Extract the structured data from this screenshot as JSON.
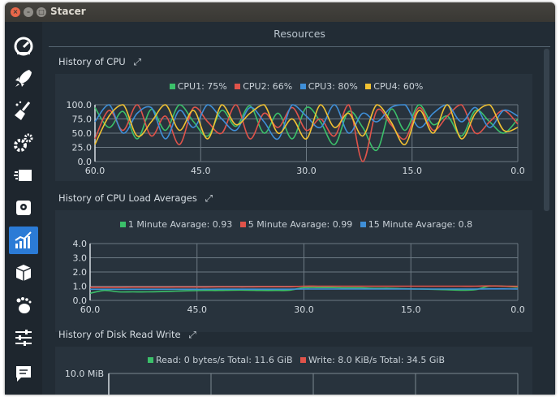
{
  "window": {
    "title": "Stacer"
  },
  "sidebar": {
    "items": [
      {
        "name": "dashboard-icon"
      },
      {
        "name": "startup-apps-icon"
      },
      {
        "name": "system-cleaner-icon"
      },
      {
        "name": "services-icon"
      },
      {
        "name": "processes-icon"
      },
      {
        "name": "uninstaller-icon"
      },
      {
        "name": "resources-icon",
        "active": true
      },
      {
        "name": "packages-icon"
      },
      {
        "name": "gnome-settings-icon"
      },
      {
        "name": "settings-icon"
      },
      {
        "name": "feedback-icon"
      }
    ]
  },
  "page": {
    "title": "Resources"
  },
  "colors": {
    "green": "#3bc06a",
    "red": "#e0534a",
    "blue": "#3f8fd8",
    "yellow": "#f1c232"
  },
  "sections": {
    "cpu": {
      "title": "History of CPU"
    },
    "load": {
      "title": "History of CPU Load Averages"
    },
    "disk": {
      "title": "History of Disk Read Write"
    }
  },
  "chart_data": [
    {
      "type": "line",
      "title": "History of CPU",
      "x_ticks": [
        "60.0",
        "45.0",
        "30.0",
        "15.0",
        "0.0"
      ],
      "y_ticks": [
        "0.0",
        "25.0",
        "50.0",
        "75.0",
        "100.0"
      ],
      "xlim": [
        60,
        0
      ],
      "ylim": [
        0,
        100
      ],
      "x": [
        60,
        58,
        56,
        54,
        52,
        50,
        48,
        46,
        44,
        42,
        40,
        38,
        36,
        34,
        32,
        30,
        28,
        26,
        24,
        22,
        20,
        18,
        16,
        14,
        12,
        10,
        8,
        6,
        4,
        2,
        0
      ],
      "series": [
        {
          "name": "CPU1: 75%",
          "color": "#3bc06a",
          "values": [
            95,
            60,
            88,
            40,
            92,
            55,
            100,
            70,
            45,
            90,
            62,
            98,
            50,
            85,
            40,
            95,
            70,
            30,
            88,
            60,
            20,
            92,
            55,
            100,
            65,
            80,
            45,
            90,
            70,
            50,
            75
          ]
        },
        {
          "name": "CPU2: 66%",
          "color": "#e0534a",
          "values": [
            40,
            90,
            55,
            100,
            45,
            80,
            30,
            95,
            70,
            50,
            100,
            40,
            85,
            60,
            95,
            55,
            75,
            45,
            100,
            0,
            90,
            65,
            40,
            95,
            55,
            80,
            100,
            50,
            70,
            90,
            66
          ]
        },
        {
          "name": "CPU3: 80%",
          "color": "#3f8fd8",
          "values": [
            70,
            100,
            50,
            85,
            95,
            40,
            90,
            60,
            100,
            75,
            55,
            95,
            70,
            40,
            100,
            80,
            60,
            100,
            50,
            85,
            70,
            95,
            100,
            60,
            85,
            100,
            70,
            95,
            60,
            90,
            80
          ]
        },
        {
          "name": "CPU4: 60%",
          "color": "#f1c232",
          "values": [
            30,
            80,
            100,
            45,
            70,
            100,
            55,
            90,
            40,
            100,
            65,
            85,
            100,
            50,
            75,
            40,
            100,
            60,
            85,
            45,
            100,
            70,
            30,
            90,
            50,
            100,
            40,
            85,
            100,
            55,
            60
          ]
        }
      ]
    },
    {
      "type": "line",
      "title": "History of CPU Load Averages",
      "x_ticks": [
        "60.0",
        "45.0",
        "30.0",
        "15.0",
        "0.0"
      ],
      "y_ticks": [
        "0.0",
        "1.0",
        "2.0",
        "3.0",
        "4.0"
      ],
      "xlim": [
        60,
        0
      ],
      "ylim": [
        0,
        4
      ],
      "x": [
        60,
        58,
        56,
        54,
        52,
        50,
        48,
        46,
        44,
        42,
        40,
        38,
        36,
        34,
        32,
        30,
        28,
        26,
        24,
        22,
        20,
        18,
        16,
        14,
        12,
        10,
        8,
        6,
        4,
        2,
        0
      ],
      "series": [
        {
          "name": "1 Minute Avarage: 0.93",
          "color": "#3bc06a",
          "values": [
            0.5,
            0.7,
            0.6,
            0.6,
            0.6,
            0.62,
            0.65,
            0.68,
            0.7,
            0.7,
            0.72,
            0.72,
            0.7,
            0.7,
            0.72,
            0.9,
            0.9,
            0.9,
            0.88,
            0.88,
            0.85,
            0.85,
            0.82,
            0.8,
            0.78,
            0.75,
            0.72,
            0.75,
            1.0,
            1.0,
            0.93
          ]
        },
        {
          "name": "5 Minute Avarage: 0.99",
          "color": "#e0534a",
          "values": [
            0.92,
            0.92,
            0.92,
            0.93,
            0.93,
            0.93,
            0.94,
            0.94,
            0.94,
            0.95,
            0.95,
            0.95,
            0.96,
            0.96,
            0.96,
            1.0,
            1.0,
            1.0,
            1.0,
            1.0,
            1.0,
            1.0,
            1.0,
            1.0,
            1.0,
            1.0,
            1.0,
            1.0,
            1.02,
            1.0,
            0.99
          ]
        },
        {
          "name": "15 Minute Avarage: 0.8",
          "color": "#3f8fd8",
          "values": [
            0.78,
            0.78,
            0.78,
            0.78,
            0.78,
            0.78,
            0.78,
            0.78,
            0.78,
            0.79,
            0.79,
            0.79,
            0.79,
            0.79,
            0.79,
            0.8,
            0.8,
            0.8,
            0.8,
            0.8,
            0.8,
            0.8,
            0.8,
            0.8,
            0.8,
            0.8,
            0.8,
            0.8,
            0.81,
            0.81,
            0.8
          ]
        }
      ]
    },
    {
      "type": "line",
      "title": "History of Disk Read Write",
      "y_ticks": [
        "10.0 MiB"
      ],
      "series": [
        {
          "name": "Read: 0 bytes/s Total: 11.6 GiB",
          "color": "#3bc06a",
          "values": []
        },
        {
          "name": "Write: 8.0 KiB/s Total: 34.5 GiB",
          "color": "#e0534a",
          "values": []
        }
      ]
    }
  ]
}
